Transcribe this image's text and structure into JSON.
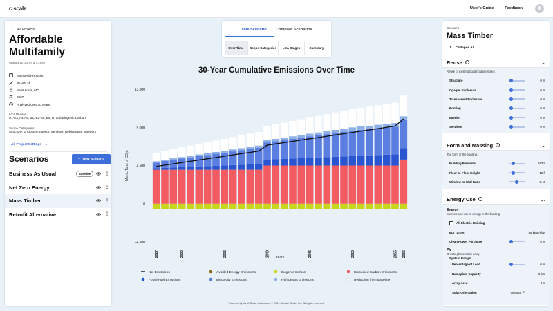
{
  "header": {
    "logo": "c.scale",
    "links": [
      "User's Guide",
      "Feedback"
    ]
  },
  "left_panel": {
    "back_label": "All Projects",
    "project_title": "Affordable Multifamily",
    "updated": "Updated 11/11/2024 at 2:21pm",
    "meta": [
      {
        "icon": "building-icon",
        "text": "Multifamily Housing"
      },
      {
        "icon": "ruler-icon",
        "text": "60,000 sf"
      },
      {
        "icon": "location-pin-icon",
        "text": "Saint Louis, MO"
      },
      {
        "icon": "flag-icon",
        "text": "2027"
      },
      {
        "icon": "clock-icon",
        "text": "Analyzed over 30 years"
      }
    ],
    "lca_label": "LCA Phases",
    "lca_value": "A1-A3, A4-A5, B1, B2-B5, B6, D, and Biogenic Carbon",
    "scope_label": "Scope Categories",
    "scope_value": "Structure, Enclosure, Interior, Services, Refrigerants, Sitework",
    "settings_link": "All Project Settings",
    "scenarios_heading": "Scenarios",
    "new_scenario": "New Scenario",
    "scenarios": [
      {
        "name": "Business As Usual",
        "badge": "Baseline",
        "active": false
      },
      {
        "name": "Net Zero Energy",
        "badge": "",
        "active": false
      },
      {
        "name": "Mass Timber",
        "badge": "",
        "active": true
      },
      {
        "name": "Retrofit Alternative",
        "badge": "",
        "active": false
      }
    ]
  },
  "tabs": {
    "top": [
      "This Scenario",
      "Compare Scenarios"
    ],
    "sub": [
      "Over Time",
      "Scope Categories",
      "LCA Stages",
      "Summary"
    ]
  },
  "chart_data": {
    "type": "bar",
    "title": "30-Year Cumulative Emissions Over Time",
    "ylabel": "Metric Tons of CO₂e",
    "xlabel": "Years",
    "ylim": [
      -4500,
      13500
    ],
    "yticks": [
      "13,500",
      "9,000",
      "4,500",
      "0",
      "-4,500"
    ],
    "ytick_values": [
      13500,
      9000,
      4500,
      0,
      -4500
    ],
    "categories": [
      2027,
      2028,
      2029,
      2030,
      2031,
      2032,
      2033,
      2034,
      2035,
      2036,
      2037,
      2038,
      2039,
      2040,
      2041,
      2042,
      2043,
      2044,
      2045,
      2046,
      2047,
      2048,
      2049,
      2050,
      2051,
      2052,
      2053,
      2054,
      2055,
      2056
    ],
    "xtick_labels": [
      "2027",
      "2030",
      "2035",
      "2040",
      "2045",
      "2050",
      "2055",
      "2056"
    ],
    "series": [
      {
        "name": "Biogenic Carbon",
        "color": "#c9d41c",
        "values": [
          -600,
          -600,
          -600,
          -600,
          -600,
          -600,
          -600,
          -600,
          -600,
          -600,
          -600,
          -600,
          -600,
          -600,
          -600,
          -600,
          -600,
          -600,
          -600,
          -600,
          -600,
          -600,
          -600,
          -600,
          -600,
          -600,
          -600,
          -600,
          -600,
          -600
        ]
      },
      {
        "name": "Embodied Carbon Emissions",
        "color": "#f35b63",
        "values": [
          4000,
          4000,
          4000,
          4000,
          4000,
          4000,
          4000,
          4000,
          4000,
          4000,
          4000,
          4000,
          4000,
          4500,
          4500,
          4500,
          4500,
          4500,
          4500,
          4500,
          4500,
          4500,
          4500,
          4500,
          4500,
          4500,
          4500,
          4500,
          4500,
          5200
        ]
      },
      {
        "name": "Fossil Fuel Emissions",
        "color": "#2a55d0",
        "values": [
          200,
          240,
          280,
          320,
          360,
          400,
          440,
          480,
          520,
          560,
          600,
          640,
          680,
          720,
          760,
          800,
          840,
          880,
          920,
          960,
          1000,
          1040,
          1080,
          1120,
          1160,
          1200,
          1240,
          1280,
          1320,
          1360
        ]
      },
      {
        "name": "Electricity Emissions",
        "color": "#5b7fe0",
        "values": [
          650,
          800,
          900,
          1000,
          1100,
          1200,
          1300,
          1400,
          1500,
          1600,
          1700,
          1800,
          1900,
          2000,
          2100,
          2200,
          2300,
          2400,
          2500,
          2600,
          2700,
          2800,
          2900,
          3000,
          3050,
          3100,
          3150,
          3200,
          3250,
          3300
        ]
      },
      {
        "name": "Refrigerant Emissions",
        "color": "#8fb0e6",
        "values": [
          150,
          160,
          170,
          180,
          190,
          200,
          210,
          220,
          230,
          240,
          250,
          260,
          270,
          280,
          290,
          300,
          310,
          320,
          330,
          340,
          350,
          360,
          370,
          380,
          390,
          400,
          410,
          420,
          430,
          440
        ]
      },
      {
        "name": "Reduction from Baseline",
        "color": "#ffffff",
        "values": [
          1000,
          1050,
          1100,
          1150,
          1200,
          1250,
          1300,
          1350,
          1400,
          1450,
          1500,
          1550,
          1600,
          1650,
          1700,
          1750,
          1800,
          1850,
          1900,
          1950,
          2000,
          2050,
          2100,
          2150,
          2200,
          2250,
          2300,
          2350,
          2400,
          2450
        ]
      },
      {
        "name": "Avoided Energy Emissions",
        "color": "#8a6d1a",
        "values": [
          0,
          0,
          0,
          0,
          0,
          0,
          0,
          0,
          0,
          0,
          0,
          0,
          0,
          0,
          0,
          0,
          0,
          0,
          0,
          0,
          0,
          0,
          0,
          0,
          0,
          0,
          0,
          0,
          0,
          0
        ]
      }
    ],
    "net_emissions": {
      "name": "Net Emissions",
      "color": "#111111",
      "values": [
        4400,
        4550,
        4700,
        4850,
        5000,
        5150,
        5300,
        5450,
        5600,
        5750,
        5900,
        6050,
        6200,
        6900,
        7050,
        7200,
        7350,
        7500,
        7650,
        7800,
        7950,
        8100,
        8250,
        8400,
        8550,
        8700,
        8850,
        9000,
        9150,
        10000
      ]
    },
    "legend_order": [
      "Net Emissions",
      "Avoided Energy Emissions",
      "Biogenic Carbon",
      "Embodied Carbon Emissions",
      "Fossil Fuel Emissions",
      "Electricity Emissions",
      "Refrigerant Emissions",
      "Reduction from Baseline"
    ]
  },
  "footer": "Powered by the C.Scale data model © 2024 Climate Scale, Inc. All rights reserved.",
  "right_panel": {
    "small_label": "Scenario",
    "title": "Mass Timber",
    "collapse": "Collapse All",
    "reuse": {
      "heading": "Reuse",
      "desc": "Reuse of existing building assemblies",
      "rows": [
        {
          "label": "Structure",
          "value": "0 %"
        },
        {
          "label": "Opaque Enclosure",
          "value": "0 %"
        },
        {
          "label": "Transparent Enclosure",
          "value": "0 %"
        },
        {
          "label": "Roofing",
          "value": "0 %"
        },
        {
          "label": "Interior",
          "value": "0 %"
        },
        {
          "label": "Services",
          "value": "0 %"
        }
      ]
    },
    "form": {
      "heading": "Form and Massing",
      "desc": "The form of the building.",
      "rows": [
        {
          "label": "Building Perimeter",
          "value": "693 ft"
        },
        {
          "label": "Floor-to-Floor Height",
          "value": "12 ft"
        },
        {
          "label": "Window-to-Wall Ratio",
          "value": "0.45"
        }
      ]
    },
    "energy": {
      "heading": "Energy Use",
      "sub": "Energy",
      "desc": "Sources and use of energy in the building",
      "all_electric": "All Electric Building",
      "eui_label": "EUI Target",
      "eui_value": "46 kBtu/sf/yr",
      "clean_label": "Clean Power Purchase",
      "clean_value": "0 %",
      "pv": "PV",
      "pv_desc": "On-site photovoltaic array",
      "system_design": "System Design",
      "pv_rows": [
        {
          "label": "Percentage of Load",
          "value": "0 %"
        },
        {
          "label": "Nameplate Capacity",
          "value": "0 kW"
        },
        {
          "label": "Array Area",
          "value": "0 sf"
        }
      ],
      "orientation_label": "Solar Orientation",
      "orientation_value": "Optimal"
    }
  }
}
